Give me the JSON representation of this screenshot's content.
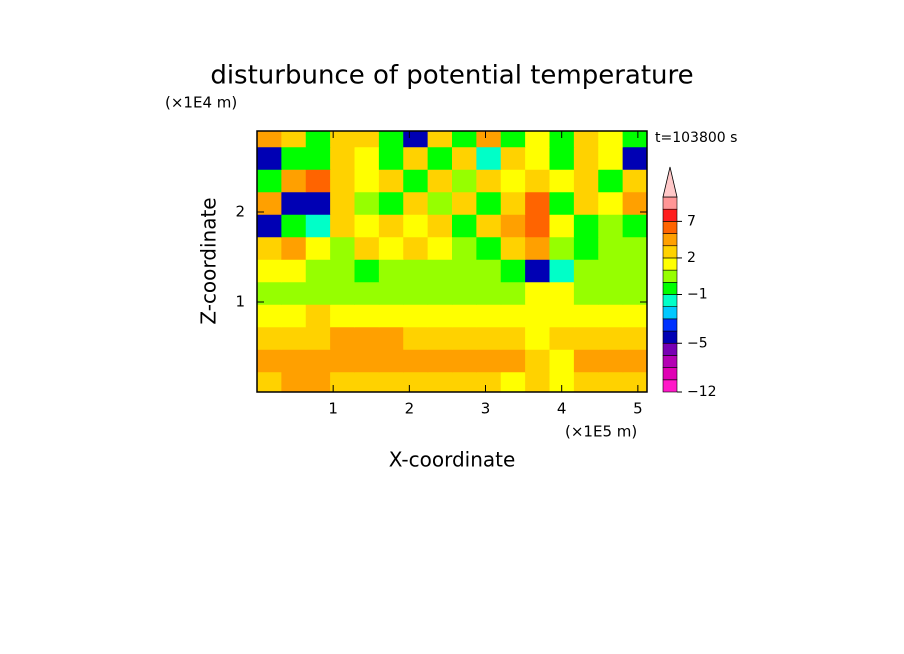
{
  "chart_data": {
    "type": "contour",
    "title": "disturbunce of potential temperature",
    "subtitle": "t=103800 s",
    "x_label": "X-coordinate",
    "y_label": "Z-coordinate",
    "x_unit": "(×1E5 m)",
    "y_unit": "(×1E4 m)",
    "xlim": [
      0,
      5.12
    ],
    "ylim": [
      0,
      2.9
    ],
    "xticks": [
      1,
      2,
      3,
      4,
      5
    ],
    "yticks": [
      1,
      2
    ],
    "x": [
      0.16,
      0.48,
      0.8,
      1.12,
      1.44,
      1.76,
      2.08,
      2.4,
      2.72,
      3.04,
      3.36,
      3.68,
      4.0,
      4.32,
      4.64,
      4.96
    ],
    "y": [
      0.1,
      0.35,
      0.6,
      0.85,
      1.1,
      1.35,
      1.6,
      1.85,
      2.1,
      2.35,
      2.6,
      2.85
    ],
    "z": [
      [
        2.5,
        3.5,
        3.5,
        2.5,
        2.5,
        2.5,
        2.5,
        2.5,
        2.5,
        2.5,
        1.5,
        2.5,
        1.5,
        2.5,
        2.5,
        2.5
      ],
      [
        4,
        4,
        3.5,
        3.5,
        3.5,
        3.5,
        4,
        3.5,
        3.5,
        4,
        3,
        2,
        1,
        4,
        4,
        4
      ],
      [
        2.5,
        2.5,
        2.5,
        3.5,
        3.5,
        3.5,
        2.5,
        2.5,
        2.5,
        2.5,
        2.5,
        1.5,
        2,
        2.5,
        2.5,
        2.5
      ],
      [
        1.5,
        1.5,
        2.5,
        1.5,
        1.5,
        1.5,
        1.5,
        1.5,
        1.5,
        1.5,
        1.5,
        1.5,
        1.5,
        1.5,
        1.5,
        1.5
      ],
      [
        0.5,
        0.5,
        0.5,
        0.5,
        0.5,
        0.5,
        0.5,
        0.5,
        0.5,
        0.5,
        0.5,
        1.5,
        1.5,
        0.5,
        0.5,
        0.5
      ],
      [
        1.5,
        1.5,
        0.5,
        0.5,
        -0.5,
        0.5,
        0.5,
        0.5,
        0.5,
        0.5,
        -0.5,
        -4.5,
        -1.5,
        0.5,
        0.5,
        0.5
      ],
      [
        2.5,
        4,
        1.5,
        0.5,
        2.5,
        1.5,
        2.5,
        1.5,
        0.5,
        -0.5,
        2.5,
        4,
        0.5,
        -0.5,
        0.5,
        0.5
      ],
      [
        -4.5,
        -0.5,
        -1.5,
        2.5,
        1.5,
        2.5,
        1.5,
        2.5,
        -0.5,
        2.5,
        4,
        6,
        1.5,
        -0.5,
        0.5,
        -0.5
      ],
      [
        4,
        -4.5,
        -4.5,
        2.5,
        0.5,
        -0.5,
        2.5,
        0.5,
        2.5,
        -0.5,
        2.5,
        6,
        -0.5,
        2.5,
        1.5,
        4
      ],
      [
        -0.5,
        4,
        6,
        2.5,
        1.5,
        2.5,
        -0.5,
        2.5,
        0.5,
        2.5,
        1.5,
        2.5,
        1.5,
        2.5,
        -0.5,
        2.5
      ],
      [
        -4.5,
        -0.5,
        -0.5,
        2.5,
        1.5,
        -0.5,
        2.5,
        -0.5,
        2.5,
        -1.5,
        2.5,
        1.5,
        -0.5,
        2.5,
        1.5,
        -4.5
      ],
      [
        4,
        2.5,
        -0.5,
        2.5,
        2.5,
        -0.5,
        -4.5,
        2.5,
        -0.5,
        4,
        -0.5,
        1.5,
        -0.5,
        2.5,
        1.5,
        -0.5
      ]
    ],
    "colorbar": {
      "levels": [
        -12,
        -10,
        -8,
        -6,
        -5,
        -4,
        -3,
        -2,
        -1,
        0,
        1,
        2,
        3,
        5,
        7,
        9,
        11
      ],
      "colors": [
        "#ff19c8",
        "#e000b4",
        "#b400b4",
        "#7800b4",
        "#0000b4",
        "#0032ff",
        "#00c8ff",
        "#00ffc8",
        "#00ff00",
        "#96ff00",
        "#ffff00",
        "#ffd200",
        "#ffa000",
        "#ff6400",
        "#ff1e1e",
        "#ff9696"
      ],
      "extend_color": "#ffc8c8",
      "ticks": [
        {
          "value": -12,
          "label": "−12"
        },
        {
          "value": -5,
          "label": "−5"
        },
        {
          "value": -1,
          "label": "−1"
        },
        2,
        7
      ]
    }
  }
}
